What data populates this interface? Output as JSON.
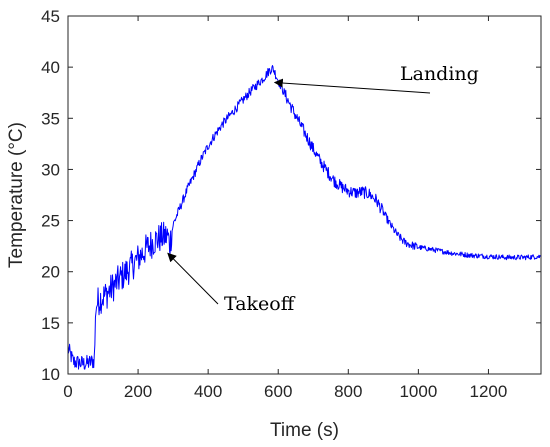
{
  "chart_data": {
    "type": "line",
    "title": "",
    "xlabel": "Time (s)",
    "ylabel": "Temperature (°C)",
    "xlim": [
      0,
      1350
    ],
    "ylim": [
      10,
      45
    ],
    "xticks": [
      0,
      200,
      400,
      600,
      800,
      1000,
      1200
    ],
    "yticks": [
      10,
      15,
      20,
      25,
      30,
      35,
      40,
      45
    ],
    "grid": false,
    "legend": "none",
    "series": [
      {
        "color": "#0000ff",
        "x": [
          0,
          15,
          30,
          45,
          60,
          75,
          80,
          90,
          110,
          130,
          150,
          170,
          190,
          210,
          230,
          250,
          270,
          285,
          290,
          300,
          320,
          340,
          360,
          380,
          400,
          420,
          440,
          460,
          480,
          500,
          520,
          540,
          560,
          575,
          585,
          600,
          620,
          640,
          660,
          680,
          700,
          720,
          740,
          760,
          780,
          800,
          820,
          840,
          860,
          880,
          900,
          920,
          940,
          960,
          980,
          1000,
          1050,
          1100,
          1150,
          1200,
          1250,
          1300,
          1350
        ],
        "y": [
          12.5,
          11.2,
          11.1,
          11.0,
          11.1,
          11.3,
          16.8,
          17.3,
          17.8,
          18.6,
          19.4,
          20.1,
          20.9,
          21.7,
          22.5,
          23.1,
          23.4,
          23.5,
          22.6,
          24.6,
          26.3,
          28.0,
          29.5,
          31.0,
          32.3,
          33.4,
          34.4,
          35.2,
          36.0,
          36.8,
          37.6,
          38.3,
          39.0,
          39.7,
          39.9,
          38.7,
          37.3,
          35.9,
          34.6,
          33.3,
          32.0,
          30.8,
          29.8,
          28.9,
          28.3,
          27.9,
          27.7,
          27.8,
          27.6,
          27.0,
          25.8,
          24.6,
          23.6,
          22.9,
          22.6,
          22.4,
          22.1,
          21.8,
          21.6,
          21.5,
          21.4,
          21.4,
          21.5
        ]
      }
    ],
    "annotations": [
      {
        "text": "Landing",
        "x": 590,
        "y": 38.5
      },
      {
        "text": "Takeoff",
        "x": 285,
        "y": 21.8
      }
    ]
  }
}
